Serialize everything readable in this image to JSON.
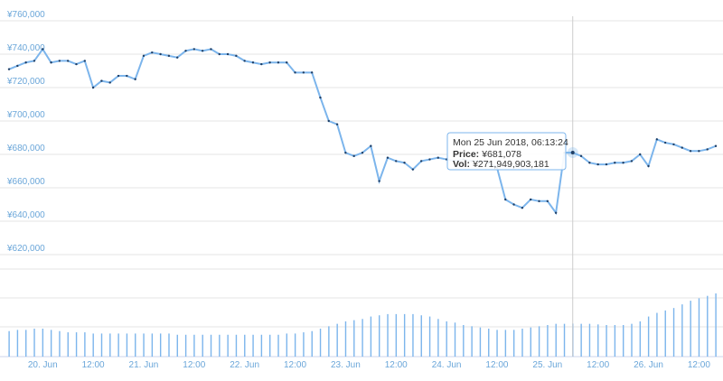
{
  "chart_data": {
    "type": "stock",
    "categories": [
      null,
      null,
      null,
      null,
      "20. Jun",
      null,
      null,
      null,
      null,
      null,
      "12:00",
      null,
      null,
      null,
      null,
      null,
      "21. Jun",
      null,
      null,
      null,
      null,
      null,
      "12:00",
      null,
      null,
      null,
      null,
      null,
      "22. Jun",
      null,
      null,
      null,
      null,
      null,
      "12:00",
      null,
      null,
      null,
      null,
      null,
      "23. Jun",
      null,
      null,
      null,
      null,
      null,
      "12:00",
      null,
      null,
      null,
      null,
      null,
      "24. Jun",
      null,
      null,
      null,
      null,
      null,
      "12:00",
      null,
      null,
      null,
      null,
      null,
      "25. Jun",
      null,
      null,
      null,
      null,
      null,
      "12:00",
      null,
      null,
      null,
      null,
      null,
      "26. Jun",
      null,
      null,
      null,
      null,
      null,
      "12:00",
      null,
      null
    ],
    "series": [
      {
        "color": "#7cb5ec",
        "values": [
          731000,
          733000,
          735000,
          736000,
          743000,
          735000,
          736000,
          736000,
          734000,
          736000,
          720000,
          724000,
          723000,
          727000,
          727000,
          725000,
          739000,
          741000,
          740000,
          739000,
          738000,
          742000,
          743000,
          742000,
          743000,
          740000,
          740000,
          739000,
          736000,
          735000,
          734000,
          735000,
          735000,
          735000,
          729000,
          729000,
          729000,
          714000,
          700000,
          698000,
          681000,
          679000,
          681000,
          685000,
          664000,
          678000,
          676000,
          675000,
          671000,
          676000,
          677000,
          678000,
          677000,
          676000,
          677000,
          676000,
          676000,
          675000,
          672000,
          653000,
          650000,
          648000,
          653000,
          652000,
          652000,
          645000,
          681000,
          681078,
          679000,
          675000,
          674000,
          674000,
          675000,
          675000,
          676000,
          680000,
          673000,
          689000,
          687000,
          686000,
          684000,
          682000,
          682000,
          683000,
          685000
        ]
      },
      {
        "color": "#7cb5ec",
        "values": [
          210000000000.0,
          220000000000.0,
          220000000000.0,
          230000000000.0,
          230000000000.0,
          220000000000.0,
          210000000000.0,
          200000000000.0,
          200000000000.0,
          200000000000.0,
          190000000000.0,
          190000000000.0,
          190000000000.0,
          190000000000.0,
          190000000000.0,
          190000000000.0,
          190000000000.0,
          190000000000.0,
          190000000000.0,
          190000000000.0,
          180000000000.0,
          180000000000.0,
          180000000000.0,
          180000000000.0,
          180000000000.0,
          180000000000.0,
          180000000000.0,
          180000000000.0,
          180000000000.0,
          180000000000.0,
          180000000000.0,
          180000000000.0,
          180000000000.0,
          190000000000.0,
          190000000000.0,
          200000000000.0,
          210000000000.0,
          230000000000.0,
          250000000000.0,
          270000000000.0,
          290000000000.0,
          300000000000.0,
          310000000000.0,
          330000000000.0,
          340000000000.0,
          350000000000.0,
          350000000000.0,
          350000000000.0,
          350000000000.0,
          340000000000.0,
          330000000000.0,
          310000000000.0,
          290000000000.0,
          280000000000.0,
          260000000000.0,
          250000000000.0,
          240000000000.0,
          230000000000.0,
          220000000000.0,
          220000000000.0,
          220000000000.0,
          230000000000.0,
          240000000000.0,
          250000000000.0,
          260000000000.0,
          270000000000.0,
          270000000000.0,
          271949903181,
          270000000000.0,
          270000000000.0,
          265000000000.0,
          260000000000.0,
          260000000000.0,
          260000000000.0,
          270000000000.0,
          290000000000.0,
          330000000000.0,
          360000000000.0,
          380000000000.0,
          400000000000.0,
          430000000000.0,
          460000000000.0,
          480000000000.0,
          500000000000.0,
          520000000000.0
        ]
      }
    ],
    "ylim": [
      620000,
      760000
    ],
    "yticks": [
      {
        "value": 620000,
        "label": "¥620,000"
      },
      {
        "value": 640000,
        "label": "¥640,000"
      },
      {
        "value": 660000,
        "label": "¥660,000"
      },
      {
        "value": 680000,
        "label": "¥680,000"
      },
      {
        "value": 700000,
        "label": "¥700,000"
      },
      {
        "value": 720000,
        "label": "¥720,000"
      },
      {
        "value": 740000,
        "label": "¥740,000"
      },
      {
        "value": 760000,
        "label": "¥760,000"
      }
    ],
    "grid": true,
    "tooltip": {
      "title": "Mon 25 Jun 2018, 06:13:24",
      "rows": [
        {
          "label": "Price:",
          "value": 681078,
          "value_label": "¥681,078"
        },
        {
          "label": "Vol:",
          "value": 271949903181,
          "value_label": "¥271,949,903,181"
        }
      ]
    }
  }
}
